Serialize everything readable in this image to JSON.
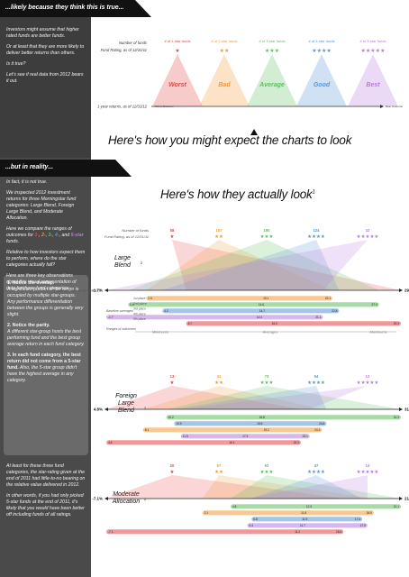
{
  "top_section": {
    "banner": "...likely because they think this is true...",
    "sidebar_paragraphs": [
      "Investors might assume that higher rated funds are better funds.",
      "Or at least that they are more likely to deliver better returns than others.",
      "Is it true?",
      "Let's see if real data from 2012 bears it out."
    ],
    "headline": "Here's how you might expect the charts to look"
  },
  "bottom_section": {
    "banner": "...but in reality...",
    "intro_paragraphs": [
      "In fact, it is not true.",
      "We inspected 2012 investment returns for three Morningstar fund categories: Large Blend, Foreign Large Blend, and Moderate Allocation.",
      "Relative to how investors expect them to perform, where do the star categories actually fall?",
      "Here are three key observations about this visual representation of data for these fund categories:"
    ],
    "compare_prefix": "Here we compare the ranges of outcomes for ",
    "compare_stars": [
      "1-",
      "2-",
      "3-",
      "4-",
      "5-star"
    ],
    "compare_suffix": " funds.",
    "compare_sep_and": ", and ",
    "compare_sep": ", ",
    "observations": [
      {
        "title": "1. Notice the overlap.",
        "body": "A significant portion of the range is occupied by multiple star-groups. Any performance differentiation between the groups is generally very slight."
      },
      {
        "title": "2. Notice the parity.",
        "body": "A different star-group hosts the best performing fund and the best group average return in each fund category."
      },
      {
        "title": "3. In each fund category, the best return did not come from a 5-star fund.",
        "body": "Also, the 5-star group didn't have the highest average in any category."
      }
    ],
    "closing_paragraphs": [
      "At least for these three fund categories, the star-rating given at the end of 2011 had little-to-no bearing on the relative value delivered in 2012.",
      "In other words, if you had only picked 5-star funds at the end of 2011, it's likely that you would have been better off including funds of all ratings."
    ],
    "headline": "Here's how they actually look",
    "headline_sup": "1"
  },
  "colors": {
    "one_star": "#e64545",
    "two_star": "#f39a3a",
    "three_star": "#5fbf5f",
    "four_star": "#5a93d6",
    "five_star": "#b77be0",
    "sidebar": "#3d3d3d"
  },
  "chart_data": [
    {
      "type": "diagram",
      "title": "Expected",
      "row_labels": [
        "Number of funds",
        "Fund Rating, as of 12/31/11"
      ],
      "axis_label": "1-year returns, as of 12/31/12",
      "axis_left": "Worst Outcome",
      "axis_right": "Best Outcome",
      "groups": [
        {
          "count_label": "# of 1-star funds",
          "stars": "★",
          "outcome": "Worst"
        },
        {
          "count_label": "# of 2-star funds",
          "stars": "★★",
          "outcome": "Bad"
        },
        {
          "count_label": "# of 3-star funds",
          "stars": "★★★",
          "outcome": "Average"
        },
        {
          "count_label": "# of 4-star funds",
          "stars": "★★★★",
          "outcome": "Good"
        },
        {
          "count_label": "# of 5-star funds",
          "stars": "★★★★★",
          "outcome": "Best"
        }
      ]
    },
    {
      "type": "range",
      "category": "Large Blend",
      "category_sup": "2",
      "row_labels": [
        "Number of funds",
        "Fund Rating, as of 12/31/11"
      ],
      "axis_label": "1-year returns, as of 12/31/12",
      "axis_min_label": "-1.7%",
      "axis_max_label": "29.3%",
      "xlim": [
        -1.7,
        29.3
      ],
      "counts": [
        58,
        107,
        190,
        124,
        32
      ],
      "stars": [
        "★",
        "★★",
        "★★★",
        "★★★★",
        "★★★★★"
      ],
      "breakdown_labels": [
        "1st place",
        "2nd place",
        "3rd place",
        "4th place",
        "5th place"
      ],
      "group_label": "Baseline averages",
      "ranges_label": "Ranges of outcomes",
      "minimums_label": "Minimums",
      "averages_label": "Averages",
      "maximums_label": "Maximums",
      "ranges": [
        {
          "min": 6.7,
          "avg": 16.0,
          "max": 29.3
        },
        {
          "min": 2.5,
          "avg": 15.1,
          "max": 22.1
        },
        {
          "min": 0.6,
          "avg": 14.6,
          "max": 27.0
        },
        {
          "min": 4.2,
          "avg": 14.7,
          "max": 22.8
        },
        {
          "min": -1.7,
          "avg": 14.4,
          "max": 21.1
        }
      ],
      "bar_labels": [
        {
          "min": "6.7",
          "avg": "16.0",
          "max": "29.3"
        },
        {
          "min": "2.5",
          "avg": "15.1",
          "max": "22.1"
        },
        {
          "min": "0.6",
          "avg": "14.6",
          "max": "27.0"
        },
        {
          "min": "4.2",
          "avg": "14.7",
          "max": "22.8"
        },
        {
          "min": "-1.7",
          "avg": "14.4",
          "max": "21.1"
        }
      ],
      "bar_order": [
        1,
        2,
        3,
        4,
        0
      ],
      "avg_bar_order": [
        0,
        2,
        3,
        1,
        4
      ]
    },
    {
      "type": "range",
      "category": "Foreign Large Blend",
      "category_sup": "2",
      "axis_min_label": "4.8%",
      "axis_max_label": "31.3%",
      "xlim": [
        4.8,
        31.3
      ],
      "counts": [
        13,
        41,
        73,
        54,
        12
      ],
      "stars": [
        "★",
        "★★",
        "★★★",
        "★★★★",
        "★★★★★"
      ],
      "ranges": [
        {
          "min": 4.8,
          "avg": 16.1,
          "max": 22.3
        },
        {
          "min": 8.1,
          "avg": 19.2,
          "max": 24.2
        },
        {
          "min": 10.2,
          "avg": 18.8,
          "max": 31.3
        },
        {
          "min": 10.9,
          "avg": 18.6,
          "max": 24.6
        },
        {
          "min": 11.5,
          "avg": 17.3,
          "max": 23.1
        }
      ],
      "bar_labels": [
        {
          "min": "4.8",
          "avg": "16.1",
          "max": "22.3"
        },
        {
          "min": "8.1",
          "avg": "19.2",
          "max": "24.2"
        },
        {
          "min": "10.2",
          "avg": "18.8",
          "max": "31.3"
        },
        {
          "min": "10.9",
          "avg": "18.6",
          "max": "24.6"
        },
        {
          "min": "11.5",
          "avg": "17.3",
          "max": "23.1"
        }
      ],
      "bar_order": [
        2,
        3,
        1,
        4,
        0
      ]
    },
    {
      "type": "range",
      "category": "Moderate Allocation",
      "category_sup": "2",
      "axis_min_label": "-7.1%",
      "axis_max_label": "21.1%",
      "xlim": [
        -7.1,
        21.1
      ],
      "counts": [
        20,
        57,
        62,
        47,
        14
      ],
      "stars": [
        "★",
        "★★",
        "★★★",
        "★★★★",
        "★★★★★"
      ],
      "ranges": [
        {
          "min": -7.1,
          "avg": 11.2,
          "max": 15.6
        },
        {
          "min": 2.1,
          "avg": 11.8,
          "max": 18.5
        },
        {
          "min": 4.8,
          "avg": 12.3,
          "max": 21.1
        },
        {
          "min": 6.8,
          "avg": 11.9,
          "max": 17.4
        },
        {
          "min": 6.4,
          "avg": 11.7,
          "max": 17.9
        }
      ],
      "bar_labels": [
        {
          "min": "-7.1",
          "avg": "11.2",
          "max": "15.6"
        },
        {
          "min": "2.1",
          "avg": "11.8",
          "max": "18.5"
        },
        {
          "min": "4.8",
          "avg": "12.3",
          "max": "21.1"
        },
        {
          "min": "6.8",
          "avg": "11.9",
          "max": "17.4"
        },
        {
          "min": "6.4",
          "avg": "11.7",
          "max": "17.9"
        }
      ],
      "bar_order": [
        2,
        1,
        3,
        4,
        0
      ]
    }
  ]
}
